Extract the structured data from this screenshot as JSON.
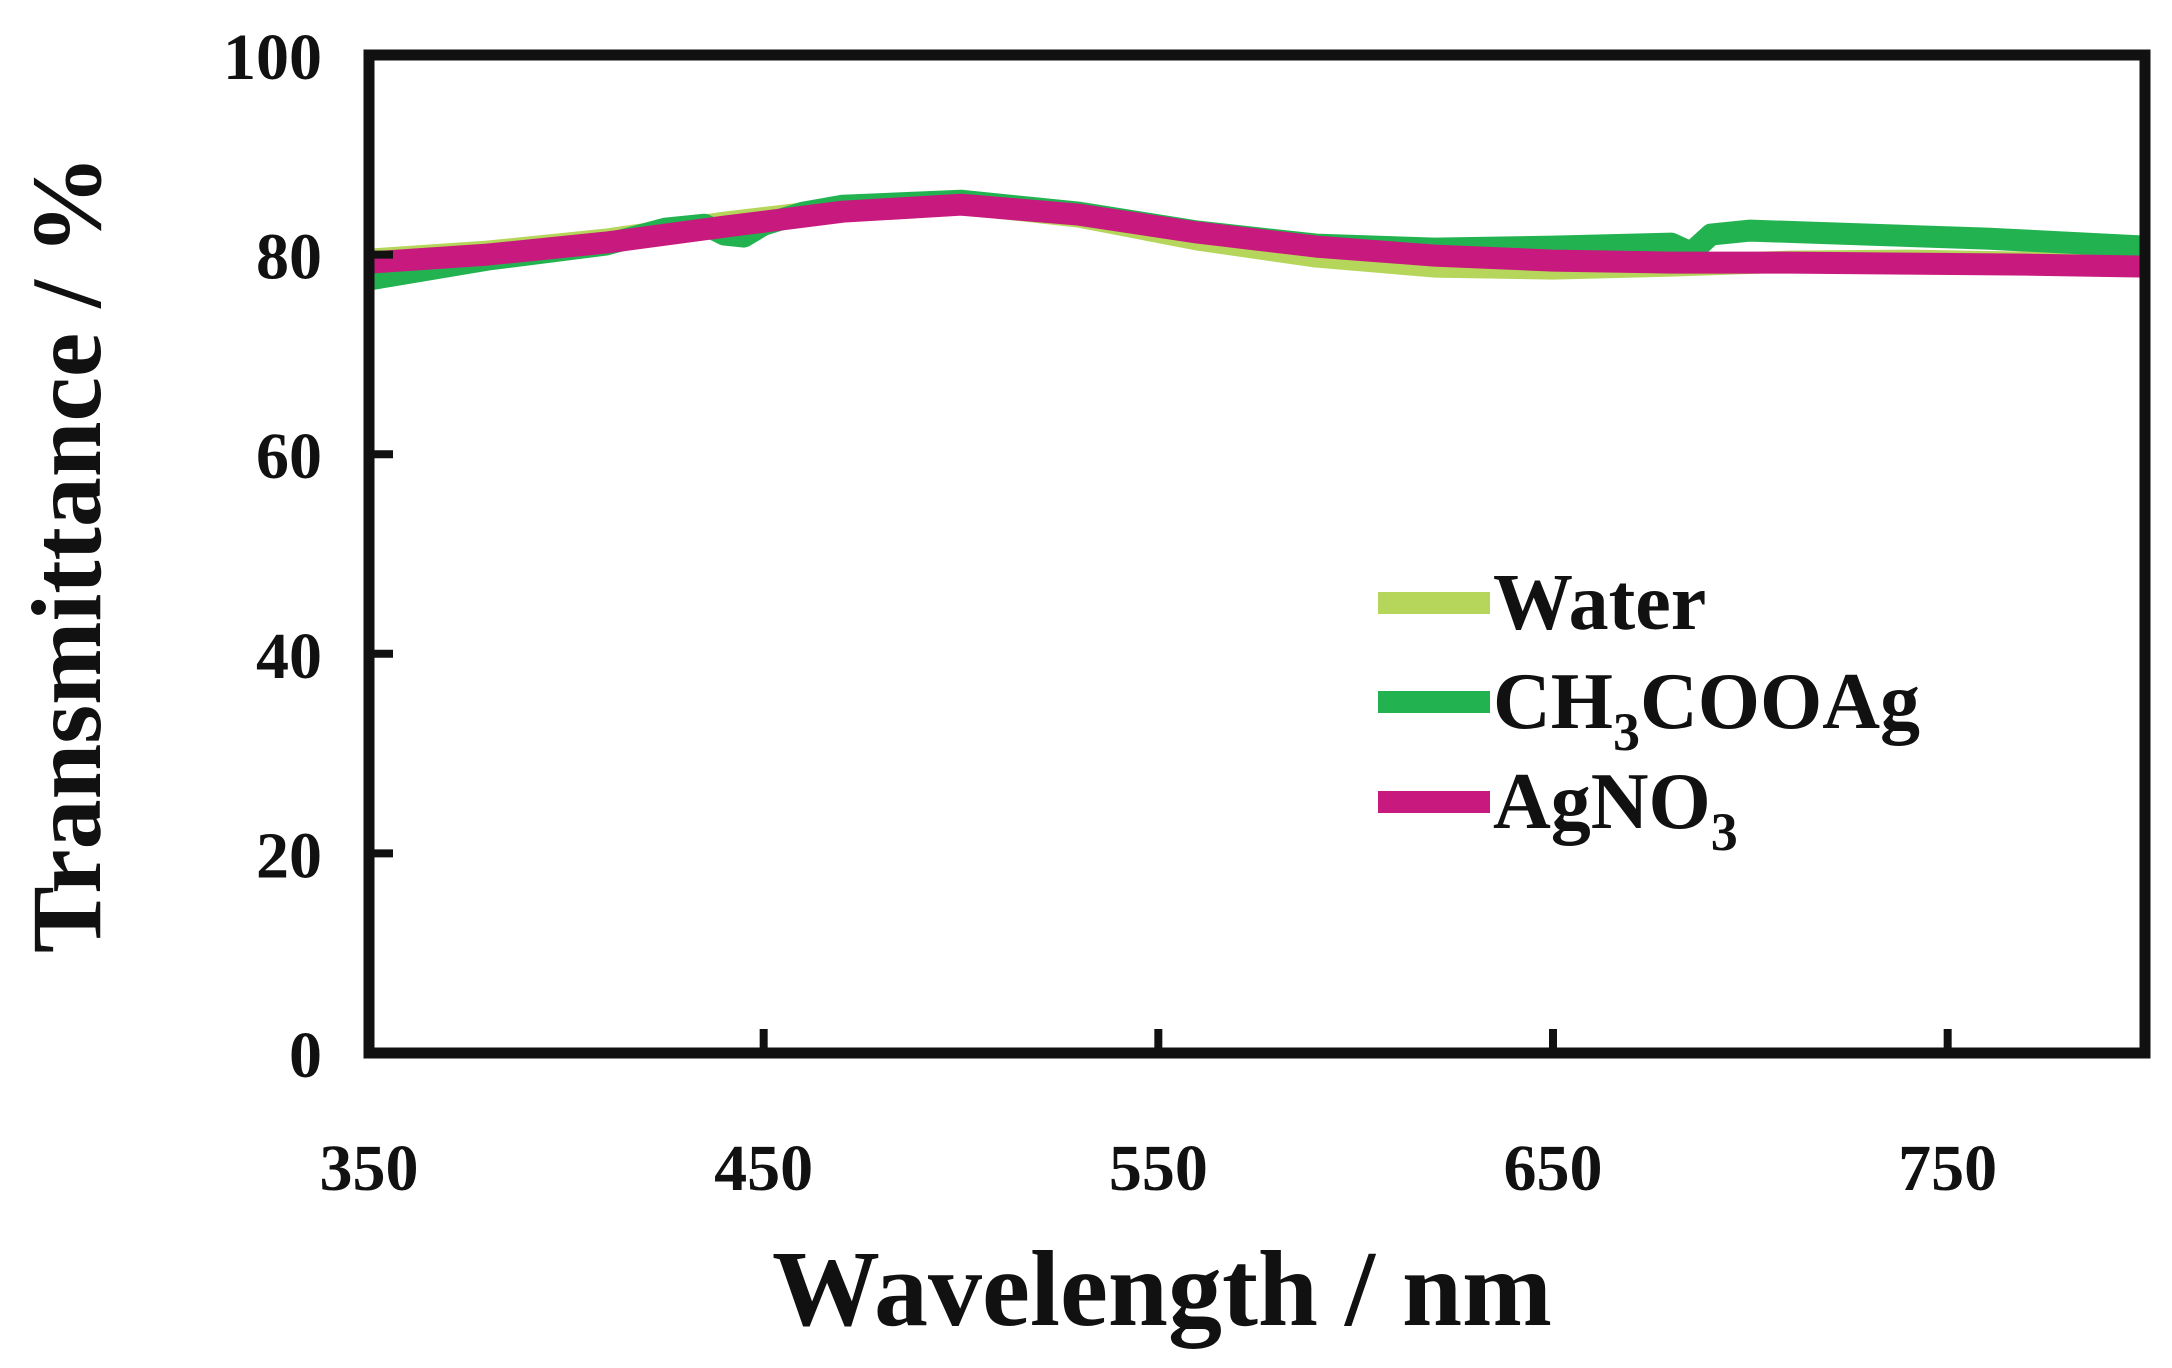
{
  "chart_data": {
    "type": "line",
    "title": "",
    "xlabel": "Wavelength / nm",
    "ylabel": "Transmittance / %",
    "xlim": [
      350,
      800
    ],
    "ylim": [
      0,
      100
    ],
    "xticks": [
      350,
      450,
      550,
      650,
      750
    ],
    "yticks": [
      0,
      20,
      40,
      60,
      80,
      100
    ],
    "grid": false,
    "legend_position": "right-middle",
    "series": [
      {
        "name": "Water",
        "name_main": "Water",
        "name_sub": "",
        "name_tail": "",
        "color": "#b5d65a",
        "x": [
          350,
          380,
          410,
          440,
          470,
          500,
          530,
          560,
          590,
          620,
          650,
          680,
          710,
          740,
          770,
          800
        ],
        "y": [
          79.5,
          80.3,
          81.5,
          83.2,
          84.6,
          85.1,
          83.8,
          81.5,
          79.8,
          78.8,
          78.6,
          78.9,
          79.3,
          79.4,
          79.2,
          79.0
        ]
      },
      {
        "name": "CH3COOAg",
        "name_main": "CH",
        "name_sub": "3",
        "name_tail": "COOAg",
        "color": "#22b350",
        "x": [
          350,
          380,
          410,
          425,
          435,
          440,
          445,
          450,
          460,
          470,
          500,
          530,
          560,
          590,
          620,
          650,
          680,
          685,
          690,
          700,
          730,
          760,
          800
        ],
        "y": [
          77.5,
          79.5,
          81.0,
          82.6,
          83.0,
          82.0,
          81.8,
          83.0,
          84.2,
          84.9,
          85.4,
          84.2,
          82.3,
          81.0,
          80.6,
          80.8,
          81.1,
          80.2,
          82.0,
          82.4,
          82.0,
          81.6,
          80.8
        ]
      },
      {
        "name": "AgNO3",
        "name_main": "AgNO",
        "name_sub": "3",
        "name_tail": "",
        "color": "#c8197e",
        "x": [
          350,
          380,
          410,
          440,
          470,
          500,
          530,
          560,
          590,
          620,
          650,
          680,
          710,
          740,
          770,
          800
        ],
        "y": [
          79.2,
          80.0,
          81.2,
          82.8,
          84.3,
          85.0,
          84.0,
          82.2,
          80.8,
          79.9,
          79.4,
          79.2,
          79.2,
          79.1,
          79.0,
          78.8
        ]
      }
    ]
  }
}
